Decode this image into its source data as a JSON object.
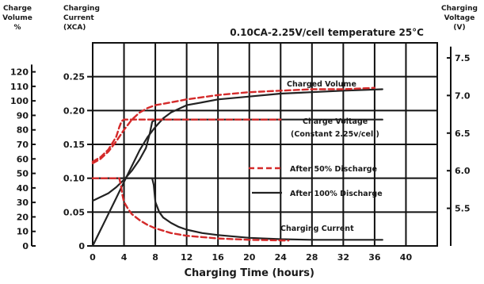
{
  "chart_data": {
    "type": "line",
    "title": "0.10CA-2.25V/cell temperature 25°C",
    "xlabel": "Charging Time (hours)",
    "x_ticks": [
      "0",
      "4",
      "8",
      "12",
      "16",
      "20",
      "24",
      "28",
      "32",
      "36",
      "40"
    ],
    "xlim": [
      0,
      44
    ],
    "axes": {
      "volume": {
        "title_lines": [
          "Charge",
          "Volume",
          "%"
        ],
        "ticks": [
          "0",
          "10",
          "20",
          "30",
          "40",
          "50",
          "60",
          "70",
          "80",
          "90",
          "100",
          "110",
          "120"
        ],
        "ylim": [
          0,
          140
        ]
      },
      "current": {
        "title_lines": [
          "Charging",
          "Current",
          "(XCA)"
        ],
        "ticks": [
          "0",
          "0.05",
          "0.10",
          "0.15",
          "0.20",
          "0.25"
        ],
        "ylim": [
          0,
          0.3
        ]
      },
      "voltage": {
        "title_lines": [
          "Charging",
          "Voltage",
          "(V)"
        ],
        "ticks": [
          "5.5",
          "6.0",
          "6.5",
          "7.0",
          "7.5"
        ],
        "ylim": [
          5.0,
          7.7
        ]
      }
    },
    "grid": true,
    "legend": [
      {
        "label": "After 50% Discharge",
        "style": "dashed",
        "color": "#d42a2a"
      },
      {
        "label": "After 100% Discharge",
        "style": "solid",
        "color": "#222222"
      }
    ],
    "annotations": [
      "Charged Volume",
      "Charge Voltage",
      "(Constant 2.25v/cell)",
      "Charging Current"
    ],
    "series": [
      {
        "group": "Charged Volume",
        "style": "solid",
        "axis": "volume",
        "x": [
          0,
          1,
          2,
          3,
          4,
          5,
          6,
          7,
          8,
          9,
          10,
          12,
          14,
          16,
          20,
          24,
          28,
          32,
          37
        ],
        "y": [
          0,
          11,
          22,
          33,
          44,
          55,
          66,
          75,
          82,
          88,
          92,
          97,
          99,
          101,
          103,
          105,
          106,
          107,
          108
        ]
      },
      {
        "group": "Charged Volume",
        "style": "dashed",
        "axis": "volume",
        "x": [
          0,
          1,
          2,
          3,
          4,
          5,
          6,
          7,
          8,
          10,
          12,
          16,
          20,
          24,
          28,
          32,
          36
        ],
        "y": [
          57,
          60,
          65,
          72,
          80,
          87,
          92,
          95,
          97,
          99,
          101,
          104,
          106,
          107,
          108,
          108,
          109
        ]
      },
      {
        "group": "Charge Voltage",
        "style": "solid",
        "axis": "voltage",
        "x": [
          0,
          1,
          2,
          3,
          4,
          5,
          6,
          6.8,
          7.3,
          7.6,
          8,
          12,
          20,
          30,
          37
        ],
        "y": [
          5.6,
          5.65,
          5.7,
          5.78,
          5.88,
          6.0,
          6.15,
          6.3,
          6.5,
          6.65,
          6.68,
          6.68,
          6.68,
          6.68,
          6.68
        ]
      },
      {
        "group": "Charge Voltage",
        "style": "dashed",
        "axis": "voltage",
        "x": [
          0,
          1,
          2,
          3,
          3.4,
          3.7,
          4,
          8,
          16,
          24
        ],
        "y": [
          6.12,
          6.18,
          6.28,
          6.45,
          6.58,
          6.66,
          6.68,
          6.68,
          6.68,
          6.68
        ]
      },
      {
        "group": "Charging Current",
        "style": "solid",
        "axis": "current",
        "x": [
          0,
          7.6,
          7.8,
          8,
          8.5,
          9,
          10,
          11,
          12,
          14,
          16,
          20,
          24,
          28,
          32,
          37
        ],
        "y": [
          0.1,
          0.1,
          0.09,
          0.065,
          0.05,
          0.042,
          0.034,
          0.028,
          0.024,
          0.019,
          0.016,
          0.012,
          0.01,
          0.009,
          0.009,
          0.009
        ]
      },
      {
        "group": "Charging Current",
        "style": "dashed",
        "axis": "current",
        "x": [
          0,
          3.4,
          3.6,
          3.8,
          4,
          4.5,
          5,
          6,
          7,
          8,
          10,
          12,
          16,
          20,
          25
        ],
        "y": [
          0.1,
          0.1,
          0.09,
          0.075,
          0.065,
          0.055,
          0.047,
          0.038,
          0.031,
          0.026,
          0.019,
          0.015,
          0.011,
          0.009,
          0.008
        ]
      }
    ]
  }
}
